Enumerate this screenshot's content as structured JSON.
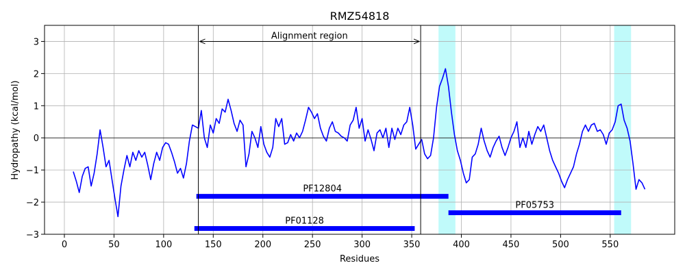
{
  "chart_data": {
    "type": "line",
    "title": "RMZ54818",
    "xlabel": "Residues",
    "ylabel": "Hydropathy (kcal/mol)",
    "xlim": [
      -20,
      615
    ],
    "ylim": [
      -3,
      3.5
    ],
    "xticks": [
      0,
      50,
      100,
      150,
      200,
      250,
      300,
      350,
      400,
      450,
      500,
      550
    ],
    "yticks": [
      -3,
      -2,
      -1,
      0,
      1,
      2,
      3
    ],
    "grid": true,
    "series": [
      {
        "color": "#0000ff",
        "x": [
          9,
          12,
          15,
          18,
          21,
          24,
          27,
          30,
          33,
          36,
          39,
          42,
          45,
          48,
          51,
          54,
          57,
          60,
          63,
          66,
          69,
          72,
          75,
          78,
          81,
          84,
          87,
          90,
          93,
          96,
          99,
          102,
          105,
          108,
          111,
          114,
          117,
          120,
          123,
          126,
          129,
          132,
          135,
          138,
          141,
          144,
          147,
          150,
          153,
          156,
          159,
          162,
          165,
          168,
          171,
          174,
          177,
          180,
          183,
          186,
          189,
          192,
          195,
          198,
          201,
          204,
          207,
          210,
          213,
          216,
          219,
          222,
          225,
          228,
          231,
          234,
          237,
          240,
          243,
          246,
          249,
          252,
          255,
          258,
          261,
          264,
          267,
          270,
          273,
          276,
          279,
          282,
          285,
          288,
          291,
          294,
          297,
          300,
          303,
          306,
          309,
          312,
          315,
          318,
          321,
          324,
          327,
          330,
          333,
          336,
          339,
          342,
          345,
          348,
          351,
          354,
          357,
          360,
          363,
          366,
          369,
          372,
          375,
          378,
          381,
          384,
          387,
          390,
          393,
          396,
          399,
          402,
          405,
          408,
          411,
          414,
          417,
          420,
          423,
          426,
          429,
          432,
          435,
          438,
          441,
          444,
          447,
          450,
          453,
          456,
          459,
          462,
          465,
          468,
          471,
          474,
          477,
          480,
          483,
          486,
          489,
          492,
          495,
          498,
          501,
          504,
          507,
          510,
          513,
          516,
          519,
          522,
          525,
          528,
          531,
          534,
          537,
          540,
          543,
          546,
          549,
          552,
          555,
          558,
          561,
          564,
          567,
          570,
          573,
          576,
          579,
          582,
          585
        ],
        "y": [
          -1.05,
          -1.35,
          -1.7,
          -1.2,
          -0.95,
          -0.9,
          -1.5,
          -1.1,
          -0.5,
          0.25,
          -0.3,
          -0.9,
          -0.7,
          -1.3,
          -1.9,
          -2.45,
          -1.5,
          -1.0,
          -0.55,
          -0.9,
          -0.45,
          -0.7,
          -0.4,
          -0.6,
          -0.45,
          -0.85,
          -1.3,
          -0.8,
          -0.45,
          -0.7,
          -0.3,
          -0.15,
          -0.2,
          -0.45,
          -0.75,
          -1.1,
          -0.95,
          -1.25,
          -0.8,
          -0.1,
          0.4,
          0.35,
          0.3,
          0.85,
          0.0,
          -0.3,
          0.4,
          0.15,
          0.6,
          0.45,
          0.9,
          0.8,
          1.2,
          0.85,
          0.45,
          0.2,
          0.55,
          0.4,
          -0.9,
          -0.5,
          0.2,
          0.0,
          -0.3,
          0.35,
          -0.2,
          -0.45,
          -0.6,
          -0.3,
          0.6,
          0.35,
          0.6,
          -0.2,
          -0.15,
          0.1,
          -0.1,
          0.15,
          0.0,
          0.2,
          0.55,
          0.95,
          0.8,
          0.6,
          0.75,
          0.3,
          0.05,
          -0.1,
          0.3,
          0.5,
          0.2,
          0.15,
          0.05,
          0.0,
          -0.1,
          0.4,
          0.55,
          0.95,
          0.3,
          0.6,
          -0.1,
          0.25,
          -0.05,
          -0.4,
          0.15,
          0.25,
          0.0,
          0.3,
          -0.3,
          0.3,
          -0.05,
          0.3,
          0.1,
          0.4,
          0.5,
          0.95,
          0.4,
          -0.35,
          -0.2,
          -0.05,
          -0.5,
          -0.65,
          -0.55,
          0.0,
          0.95,
          1.6,
          1.85,
          2.15,
          1.6,
          0.8,
          0.1,
          -0.4,
          -0.7,
          -1.1,
          -1.4,
          -1.3,
          -0.6,
          -0.5,
          -0.2,
          0.3,
          -0.1,
          -0.4,
          -0.6,
          -0.3,
          -0.1,
          0.05,
          -0.3,
          -0.55,
          -0.3,
          0.0,
          0.2,
          0.5,
          -0.3,
          0.0,
          -0.3,
          0.2,
          -0.2,
          0.1,
          0.35,
          0.2,
          0.4,
          0.0,
          -0.4,
          -0.7,
          -0.9,
          -1.1,
          -1.35,
          -1.55,
          -1.3,
          -1.1,
          -0.9,
          -0.5,
          -0.2,
          0.2,
          0.4,
          0.2,
          0.4,
          0.45,
          0.2,
          0.25,
          0.1,
          -0.2,
          0.15,
          0.25,
          0.5,
          1.0,
          1.05,
          0.55,
          0.3,
          -0.1,
          -0.8,
          -1.6,
          -1.3,
          -1.4,
          -1.6
        ]
      }
    ],
    "shaded_regions": [
      {
        "x0": 377,
        "x1": 394,
        "color": "#c0fafa"
      },
      {
        "x0": 554,
        "x1": 571,
        "color": "#c0fafa"
      }
    ],
    "vlines": [
      135,
      359
    ],
    "alignment": {
      "label": "Alignment region",
      "x0": 135,
      "x1": 359,
      "y": 3.0
    },
    "domain_bars": [
      {
        "label": "PF12804",
        "x0": 133,
        "x1": 387,
        "y": -1.82
      },
      {
        "label": "PF05753",
        "x0": 387,
        "x1": 561,
        "y": -2.33
      },
      {
        "label": "PF01128",
        "x0": 131,
        "x1": 353,
        "y": -2.82
      }
    ]
  }
}
